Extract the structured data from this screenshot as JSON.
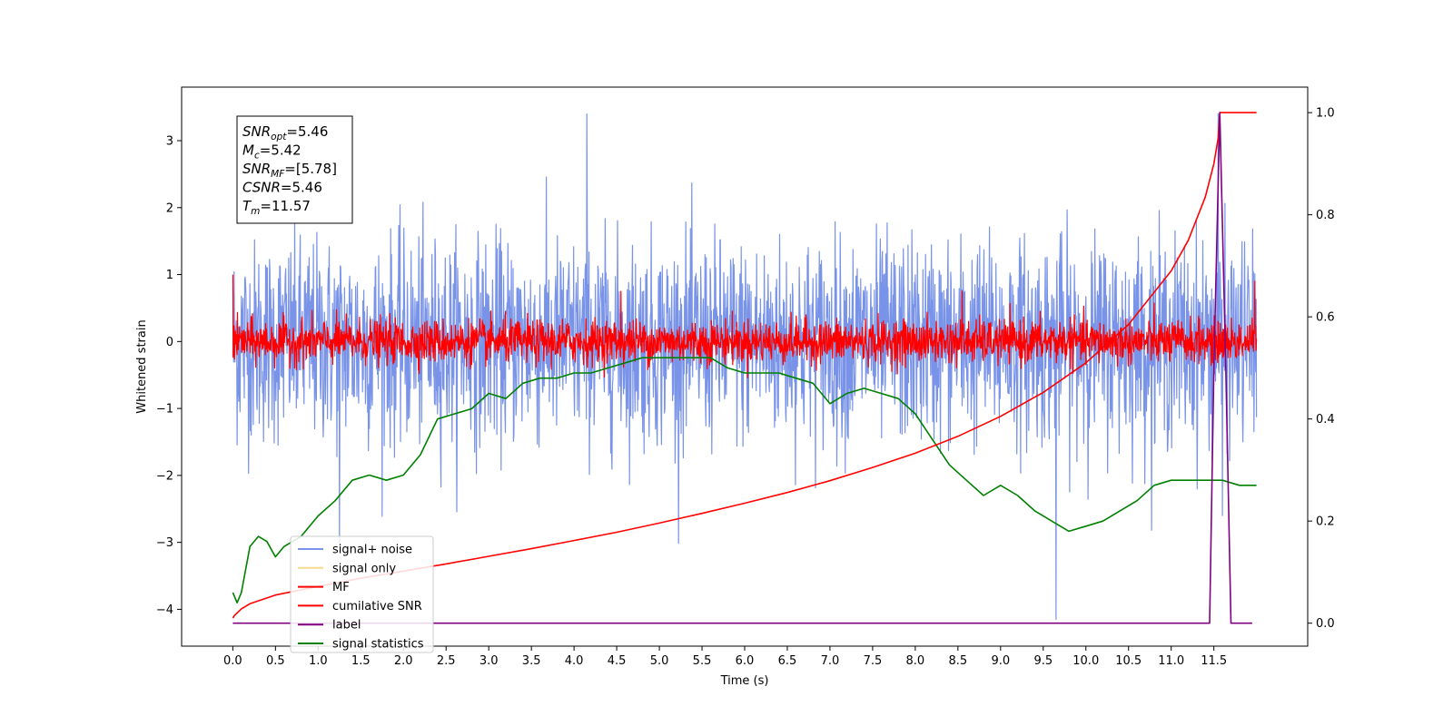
{
  "chart_data": {
    "type": "line",
    "xlabel": "Time (s)",
    "ylabel": "Whitened strain",
    "xlim": [
      -0.6,
      12.6
    ],
    "ylim": [
      -4.55,
      3.8
    ],
    "ylim_right": [
      -0.045,
      1.05
    ],
    "x_ticks": [
      "0.0",
      "0.5",
      "1.0",
      "1.5",
      "2.0",
      "2.5",
      "3.0",
      "3.5",
      "4.0",
      "4.5",
      "5.0",
      "5.5",
      "6.0",
      "6.5",
      "7.0",
      "7.5",
      "8.0",
      "8.5",
      "9.0",
      "9.5",
      "10.0",
      "10.5",
      "11.0",
      "11.5"
    ],
    "y_ticks_left": [
      "3",
      "2",
      "1",
      "0",
      "−1",
      "−2",
      "−3",
      "−4"
    ],
    "y_ticks_right": [
      "1.0",
      "0.8",
      "0.6",
      "0.4",
      "0.2",
      "0.0"
    ],
    "grid": false,
    "legend_position": "lower-left",
    "annotation": {
      "lines": [
        {
          "main": "SNR",
          "sub": "opt",
          "value": "=5.46"
        },
        {
          "main": "M",
          "sub": "c",
          "value": "=5.42"
        },
        {
          "main": "SNR",
          "sub": "MF",
          "value": "=[5.78]"
        },
        {
          "main": "CSNR",
          "sub": "",
          "value": "=5.46"
        },
        {
          "main": "T",
          "sub": "m",
          "value": "=11.57"
        }
      ]
    },
    "series": [
      {
        "name": "signal+ noise",
        "color": "#7893e8",
        "axis": "left",
        "kind": "noise",
        "x_range": [
          0.0,
          12.0
        ],
        "center": 0.0,
        "amplitude_sd": 0.75,
        "spikes": [
          [
            1.25,
            -3.05
          ],
          [
            4.15,
            3.4
          ],
          [
            9.65,
            -4.15
          ],
          [
            11.55,
            3.4
          ],
          [
            11.6,
            -2.6
          ]
        ]
      },
      {
        "name": "signal only",
        "color": "#f5d98f",
        "axis": "left",
        "kind": "hidden",
        "x": [],
        "y": []
      },
      {
        "name": "MF",
        "color": "#ff0000",
        "axis": "left",
        "kind": "noise",
        "x_range": [
          0.0,
          12.0
        ],
        "center": 0.0,
        "amplitude_sd": 0.16,
        "spikes": [
          [
            0.0,
            1.0
          ],
          [
            4.55,
            0.75
          ],
          [
            8.55,
            0.75
          ],
          [
            11.98,
            0.9
          ]
        ]
      },
      {
        "name": "cumilative SNR",
        "color": "#ff0000",
        "axis": "right",
        "x": [
          0.0,
          0.02,
          0.05,
          0.1,
          0.2,
          0.5,
          1.0,
          1.5,
          2.0,
          2.5,
          3.0,
          3.5,
          4.0,
          4.5,
          5.0,
          5.5,
          6.0,
          6.5,
          7.0,
          7.5,
          8.0,
          8.5,
          9.0,
          9.5,
          10.0,
          10.5,
          11.0,
          11.2,
          11.4,
          11.5,
          11.55,
          11.57,
          11.6,
          12.0
        ],
        "y": [
          0.01,
          0.015,
          0.02,
          0.028,
          0.038,
          0.055,
          0.072,
          0.088,
          0.102,
          0.116,
          0.131,
          0.146,
          0.162,
          0.178,
          0.196,
          0.215,
          0.235,
          0.256,
          0.279,
          0.305,
          0.333,
          0.366,
          0.405,
          0.452,
          0.51,
          0.585,
          0.69,
          0.75,
          0.835,
          0.9,
          0.95,
          1.0,
          1.0,
          1.0
        ]
      },
      {
        "name": "label",
        "color": "#800080",
        "axis": "right",
        "x": [
          0.0,
          11.45,
          11.5,
          11.57,
          11.64,
          11.7,
          11.95
        ],
        "y": [
          0.0,
          0.0,
          0.5,
          1.0,
          0.5,
          0.0,
          0.0
        ]
      },
      {
        "name": "signal statistics",
        "color": "#008000",
        "axis": "right",
        "x": [
          0.0,
          0.05,
          0.1,
          0.2,
          0.3,
          0.4,
          0.5,
          0.6,
          0.7,
          0.8,
          1.0,
          1.2,
          1.4,
          1.6,
          1.8,
          2.0,
          2.2,
          2.4,
          2.6,
          2.8,
          3.0,
          3.2,
          3.4,
          3.6,
          3.8,
          4.0,
          4.2,
          4.4,
          4.6,
          4.8,
          5.0,
          5.2,
          5.4,
          5.6,
          5.8,
          6.0,
          6.2,
          6.4,
          6.6,
          6.8,
          7.0,
          7.2,
          7.4,
          7.6,
          7.8,
          8.0,
          8.2,
          8.4,
          8.6,
          8.8,
          9.0,
          9.2,
          9.4,
          9.6,
          9.8,
          10.0,
          10.2,
          10.4,
          10.6,
          10.8,
          11.0,
          11.2,
          11.4,
          11.6,
          11.8,
          12.0
        ],
        "y": [
          0.06,
          0.04,
          0.06,
          0.15,
          0.17,
          0.16,
          0.13,
          0.15,
          0.16,
          0.17,
          0.21,
          0.24,
          0.28,
          0.29,
          0.28,
          0.29,
          0.33,
          0.4,
          0.41,
          0.42,
          0.45,
          0.44,
          0.47,
          0.48,
          0.48,
          0.49,
          0.49,
          0.5,
          0.51,
          0.52,
          0.52,
          0.52,
          0.52,
          0.52,
          0.5,
          0.49,
          0.49,
          0.49,
          0.48,
          0.47,
          0.43,
          0.45,
          0.46,
          0.45,
          0.44,
          0.41,
          0.36,
          0.31,
          0.28,
          0.25,
          0.27,
          0.25,
          0.22,
          0.2,
          0.18,
          0.19,
          0.2,
          0.22,
          0.24,
          0.27,
          0.28,
          0.28,
          0.28,
          0.28,
          0.27,
          0.27
        ]
      }
    ]
  }
}
